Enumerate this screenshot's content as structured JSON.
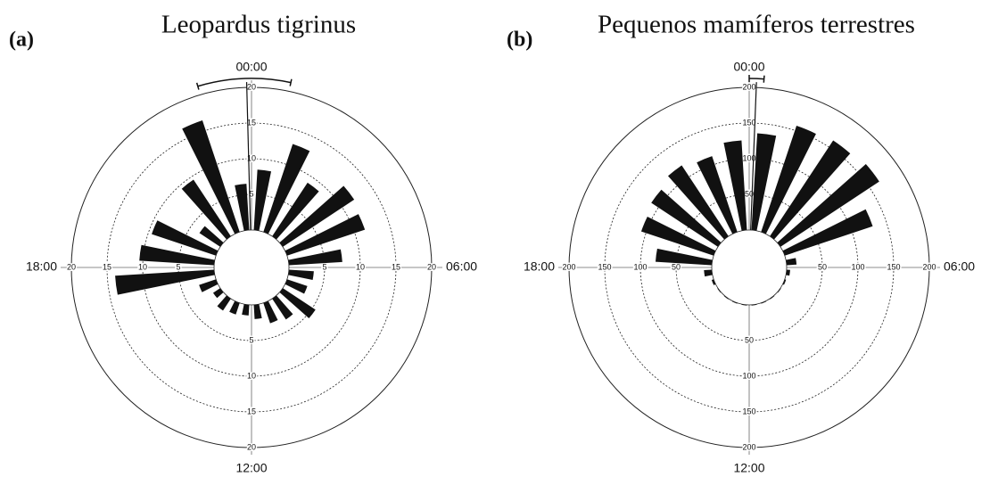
{
  "chart_data": [
    {
      "type": "rose",
      "panel": "(a)",
      "title": "Leopardus tigrinus",
      "direction_labels": [
        "00:00",
        "06:00",
        "12:00",
        "18:00"
      ],
      "values": [
        8.5,
        13,
        9,
        12,
        11.5,
        7.5,
        3.5,
        3,
        5.5,
        3.5,
        3,
        2,
        1.5,
        1.7,
        2,
        1.2,
        2.5,
        13.9,
        10.5,
        9.5,
        3.5,
        9.5,
        16.5,
        6.5
      ],
      "color": "#111111",
      "rlim": [
        0,
        20
      ],
      "rticks": [
        5,
        10,
        15,
        20
      ],
      "mean": 23.9,
      "ci": [
        22.9,
        0.8
      ]
    },
    {
      "type": "rose",
      "panel": "(b)",
      "title": "Pequenos mamíferos terrestres",
      "direction_labels": [
        "00:00",
        "06:00",
        "12:00",
        "18:00"
      ],
      "values": [
        136,
        157,
        161,
        166,
        130,
        14,
        5,
        2,
        1,
        1,
        1,
        1,
        1,
        1,
        1,
        1,
        3,
        11,
        79,
        107,
        112,
        119,
        112,
        126
      ],
      "color": "#111111",
      "rlim": [
        0,
        200
      ],
      "rticks": [
        50,
        100,
        150,
        200
      ],
      "mean": 0.15,
      "ci": [
        0.0,
        0.3
      ]
    }
  ]
}
